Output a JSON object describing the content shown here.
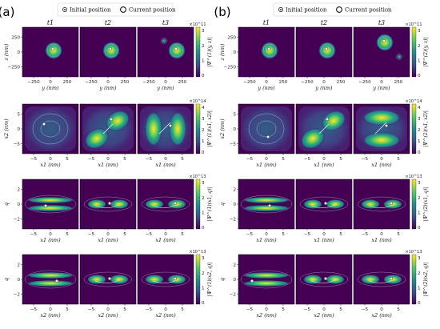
{
  "figure": {
    "halves": [
      {
        "label": "(a)",
        "legend": {
          "initial": "Initial position",
          "current": "Current position"
        },
        "time_titles": [
          "t1",
          "t2",
          "t3"
        ],
        "rows": [
          {
            "xlabel": "y (nm)",
            "ylabel": "z (nm)",
            "cbar_label": "|Ψ^(1)(y, z)|",
            "cbar_exp": "×10^11",
            "cbar_ticks": [
              "0",
              "1",
              "2",
              "3"
            ],
            "xticks": [
              "−250",
              "0",
              "250"
            ],
            "yticks": [
              "250",
              "0",
              "−250"
            ]
          },
          {
            "xlabel": "x1 (nm)",
            "ylabel": "x2 (nm)",
            "cbar_label": "|Ψ^(1)(x1, x2)|",
            "cbar_exp": "×10^14",
            "cbar_ticks": [
              "0",
              "1",
              "2",
              "3",
              "4"
            ],
            "xticks": [
              "−5",
              "0",
              "5"
            ],
            "yticks": [
              "5",
              "0",
              "−5"
            ]
          },
          {
            "xlabel": "x1 (nm)",
            "ylabel": "q",
            "cbar_label": "|Ψ^(1)(x1, q)|",
            "cbar_exp": "×10^13",
            "cbar_ticks": [
              "0",
              "1",
              "2",
              "3"
            ],
            "xticks": [
              "−5",
              "0",
              "5"
            ],
            "yticks": [
              "2",
              "0",
              "−2"
            ]
          },
          {
            "xlabel": "x2 (nm)",
            "ylabel": "q",
            "cbar_label": "|Ψ^(1)(x2, q)|",
            "cbar_exp": "×10^13",
            "cbar_ticks": [
              "0",
              "1",
              "2",
              "3"
            ],
            "xticks": [
              "−5",
              "0",
              "5"
            ],
            "yticks": [
              "2",
              "0",
              "−2"
            ]
          }
        ]
      },
      {
        "label": "(b)",
        "legend": {
          "initial": "Initial position",
          "current": "Current position"
        },
        "time_titles": [
          "t1",
          "t2",
          "t3"
        ],
        "rows": [
          {
            "xlabel": "y (nm)",
            "ylabel": "z (nm)",
            "cbar_label": "|Ψ^(2)(y, z)|",
            "cbar_exp": "×10^11",
            "cbar_ticks": [
              "0",
              "1",
              "2",
              "3"
            ],
            "xticks": [
              "−250",
              "0",
              "250"
            ],
            "yticks": [
              "250",
              "0",
              "−250"
            ]
          },
          {
            "xlabel": "x1 (nm)",
            "ylabel": "x2 (nm)",
            "cbar_label": "|Ψ^(2)(x1, x2)|",
            "cbar_exp": "×10^14",
            "cbar_ticks": [
              "0",
              "1",
              "2",
              "3",
              "4"
            ],
            "xticks": [
              "−5",
              "0",
              "5"
            ],
            "yticks": [
              "5",
              "0",
              "−5"
            ]
          },
          {
            "xlabel": "x1 (nm)",
            "ylabel": "q",
            "cbar_label": "|Ψ^(2)(x1, q)|",
            "cbar_exp": "×10^13",
            "cbar_ticks": [
              "0",
              "1",
              "2",
              "3"
            ],
            "xticks": [
              "−5",
              "0",
              "5"
            ],
            "yticks": [
              "2",
              "0",
              "−2"
            ]
          },
          {
            "xlabel": "x2 (nm)",
            "ylabel": "q",
            "cbar_label": "|Ψ^(2)(x2, q)|",
            "cbar_exp": "×10^13",
            "cbar_ticks": [
              "0",
              "1",
              "2",
              "3"
            ],
            "xticks": [
              "−5",
              "0",
              "5"
            ],
            "yticks": [
              "2",
              "0",
              "−2"
            ]
          }
        ]
      }
    ]
  },
  "colors": {
    "background": "#440154",
    "mid": "#21918c",
    "high": "#fde725",
    "contour": "#c8e6e3"
  }
}
